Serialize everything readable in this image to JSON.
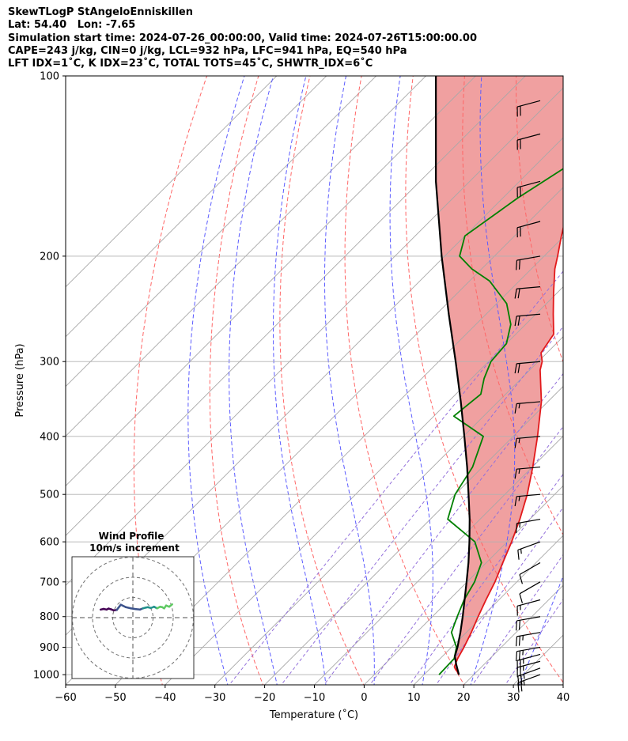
{
  "header": {
    "line1": "SkewTLogP StAngeloEnniskillen",
    "line2": "Lat: 54.40   Lon: -7.65",
    "line3": "Simulation start time: 2024-07-26_00:00:00, Valid time: 2024-07-26T15:00:00.00",
    "line4": "CAPE=243 j/kg, CIN=0 j/kg, LCL=932 hPa, LFC=941 hPa, EQ=540 hPa",
    "line5": "LFT IDX=1˚C, K IDX=23˚C, TOTAL TOTS=45˚C, SHWTR_IDX=6˚C"
  },
  "chart_data": {
    "type": "skewt",
    "xlabel": "Temperature (˚C)",
    "ylabel": "Pressure (hPa)",
    "xlim": [
      -60,
      40
    ],
    "ylim": [
      1040,
      100
    ],
    "x_ticks": [
      {
        "value": -60,
        "label": "−60"
      },
      {
        "value": -50,
        "label": "−50"
      },
      {
        "value": -40,
        "label": "−40"
      },
      {
        "value": -30,
        "label": "−30"
      },
      {
        "value": -20,
        "label": "−20"
      },
      {
        "value": -10,
        "label": "−10"
      },
      {
        "value": 0,
        "label": "0"
      },
      {
        "value": 10,
        "label": "10"
      },
      {
        "value": 20,
        "label": "20"
      },
      {
        "value": 30,
        "label": "30"
      },
      {
        "value": 40,
        "label": "40"
      }
    ],
    "y_ticks": [
      {
        "value": 100,
        "label": "100"
      },
      {
        "value": 200,
        "label": "200"
      },
      {
        "value": 300,
        "label": "300"
      },
      {
        "value": 400,
        "label": "400"
      },
      {
        "value": 500,
        "label": "500"
      },
      {
        "value": 600,
        "label": "600"
      },
      {
        "value": 700,
        "label": "700"
      },
      {
        "value": 800,
        "label": "800"
      },
      {
        "value": 900,
        "label": "900"
      },
      {
        "value": 1000,
        "label": "1000"
      }
    ],
    "series": [
      {
        "name": "temperature",
        "color": "#e31a1c",
        "p": [
          1000,
          970,
          940,
          900,
          850,
          800,
          750,
          700,
          650,
          600,
          550,
          500,
          450,
          400,
          350,
          310,
          300,
          290,
          270,
          250,
          230,
          210,
          200,
          185,
          170,
          150,
          130,
          115,
          105,
          100
        ],
        "t": [
          17.0,
          14.5,
          13.5,
          12.5,
          11.0,
          9.2,
          7.4,
          5.6,
          3.3,
          0.9,
          -2.0,
          -5.5,
          -9.9,
          -15.1,
          -21.3,
          -27.9,
          -29.2,
          -31.2,
          -32.4,
          -36.5,
          -40.8,
          -45.3,
          -47.3,
          -50.6,
          -54.0,
          -59.0,
          -63.0,
          -66.5,
          -68.4,
          -68.0
        ]
      },
      {
        "name": "dewpoint",
        "color": "#008000",
        "p": [
          1000,
          970,
          940,
          900,
          850,
          800,
          750,
          700,
          650,
          600,
          550,
          500,
          450,
          400,
          370,
          340,
          320,
          300,
          280,
          260,
          240,
          220,
          210,
          200,
          185,
          160,
          130,
          100
        ],
        "t": [
          13.0,
          12.9,
          12.8,
          11.0,
          7.0,
          5.0,
          3.0,
          1.5,
          -1.0,
          -6.5,
          -16.5,
          -20.0,
          -22.0,
          -26.0,
          -36.0,
          -35.0,
          -37.5,
          -39.5,
          -40.0,
          -43.0,
          -48.0,
          -56.0,
          -62.0,
          -67.0,
          -70.0,
          -67.0,
          -61.0,
          -52.0
        ]
      },
      {
        "name": "parcel",
        "color": "#000000",
        "p": [
          1000,
          960,
          932,
          900,
          850,
          800,
          750,
          700,
          650,
          600,
          550,
          500,
          450,
          400,
          350,
          300,
          250,
          200,
          150,
          100
        ],
        "t": [
          17.0,
          14.3,
          12.5,
          11.2,
          8.8,
          6.1,
          3.1,
          -0.1,
          -3.6,
          -7.6,
          -12.1,
          -17.3,
          -23.1,
          -29.8,
          -37.5,
          -46.6,
          -57.5,
          -70.6,
          -86.8,
          -108.0
        ]
      }
    ],
    "isotherm_t": [
      -140,
      -130,
      -120,
      -110,
      -100,
      -90,
      -80,
      -70,
      -60,
      -50,
      -40,
      -30,
      -20,
      -10,
      0,
      10,
      20,
      30,
      40
    ],
    "dry_adiabat_theta": [
      230,
      250,
      270,
      290,
      310,
      330,
      350,
      370,
      390,
      410,
      430,
      450,
      470
    ],
    "moist_adiabat_t": [
      -30,
      -20,
      -10,
      0,
      10,
      20,
      30,
      40
    ],
    "mixing_ratio_gkg": [
      0.4,
      1,
      2,
      4,
      7,
      10,
      16,
      24
    ],
    "wind_barbs": [
      {
        "p": 1000,
        "speed_kt": 25,
        "dir": 250
      },
      {
        "p": 975,
        "speed_kt": 25,
        "dir": 250
      },
      {
        "p": 950,
        "speed_kt": 25,
        "dir": 255
      },
      {
        "p": 925,
        "speed_kt": 25,
        "dir": 255
      },
      {
        "p": 900,
        "speed_kt": 25,
        "dir": 260
      },
      {
        "p": 850,
        "speed_kt": 25,
        "dir": 260
      },
      {
        "p": 800,
        "speed_kt": 20,
        "dir": 260
      },
      {
        "p": 750,
        "speed_kt": 15,
        "dir": 255
      },
      {
        "p": 700,
        "speed_kt": 10,
        "dir": 240
      },
      {
        "p": 650,
        "speed_kt": 10,
        "dir": 240
      },
      {
        "p": 600,
        "speed_kt": 15,
        "dir": 250
      },
      {
        "p": 550,
        "speed_kt": 15,
        "dir": 260
      },
      {
        "p": 500,
        "speed_kt": 15,
        "dir": 265
      },
      {
        "p": 450,
        "speed_kt": 15,
        "dir": 265
      },
      {
        "p": 400,
        "speed_kt": 15,
        "dir": 265
      },
      {
        "p": 350,
        "speed_kt": 15,
        "dir": 265
      },
      {
        "p": 300,
        "speed_kt": 20,
        "dir": 265
      },
      {
        "p": 250,
        "speed_kt": 20,
        "dir": 265
      },
      {
        "p": 225,
        "speed_kt": 20,
        "dir": 265
      },
      {
        "p": 200,
        "speed_kt": 20,
        "dir": 260
      },
      {
        "p": 175,
        "speed_kt": 20,
        "dir": 255
      },
      {
        "p": 150,
        "speed_kt": 20,
        "dir": 255
      },
      {
        "p": 125,
        "speed_kt": 20,
        "dir": 255
      },
      {
        "p": 110,
        "speed_kt": 20,
        "dir": 255
      }
    ],
    "hodograph": {
      "title_line1": "Wind Profile",
      "title_line2": "10m/s increment",
      "ring_ms": [
        10,
        20,
        30
      ],
      "points_u_ms": [
        -16.0,
        -14.5,
        -13.0,
        -12.0,
        -11.0,
        -9.5,
        -8.0,
        -6.0,
        -3.5,
        -1.0,
        1.5,
        3.5,
        5.0,
        6.5,
        7.5,
        8.0,
        9.0,
        10.5,
        12.0,
        13.5,
        14.5,
        15.5,
        16.5,
        18.0,
        19.5
      ],
      "points_v_ms": [
        4.0,
        4.3,
        4.0,
        4.5,
        4.2,
        3.6,
        3.8,
        6.4,
        5.2,
        4.6,
        4.2,
        4.0,
        4.6,
        5.0,
        5.2,
        5.0,
        4.8,
        5.4,
        4.6,
        5.4,
        5.2,
        4.6,
        6.0,
        5.4,
        6.6
      ],
      "colormap": [
        "#440154",
        "#3b528b",
        "#21918c",
        "#5ec962",
        "#fde725"
      ]
    },
    "colors": {
      "cape_fill": "#a6c8df",
      "cin_fill": "#f0a0a0",
      "isotherm": "#a8a8a8",
      "dry_adiabat": "#ff6666",
      "moist_adiabat": "#5c5cff",
      "mixing_ratio": "#9370db",
      "grid": "#b0b0b0"
    }
  }
}
